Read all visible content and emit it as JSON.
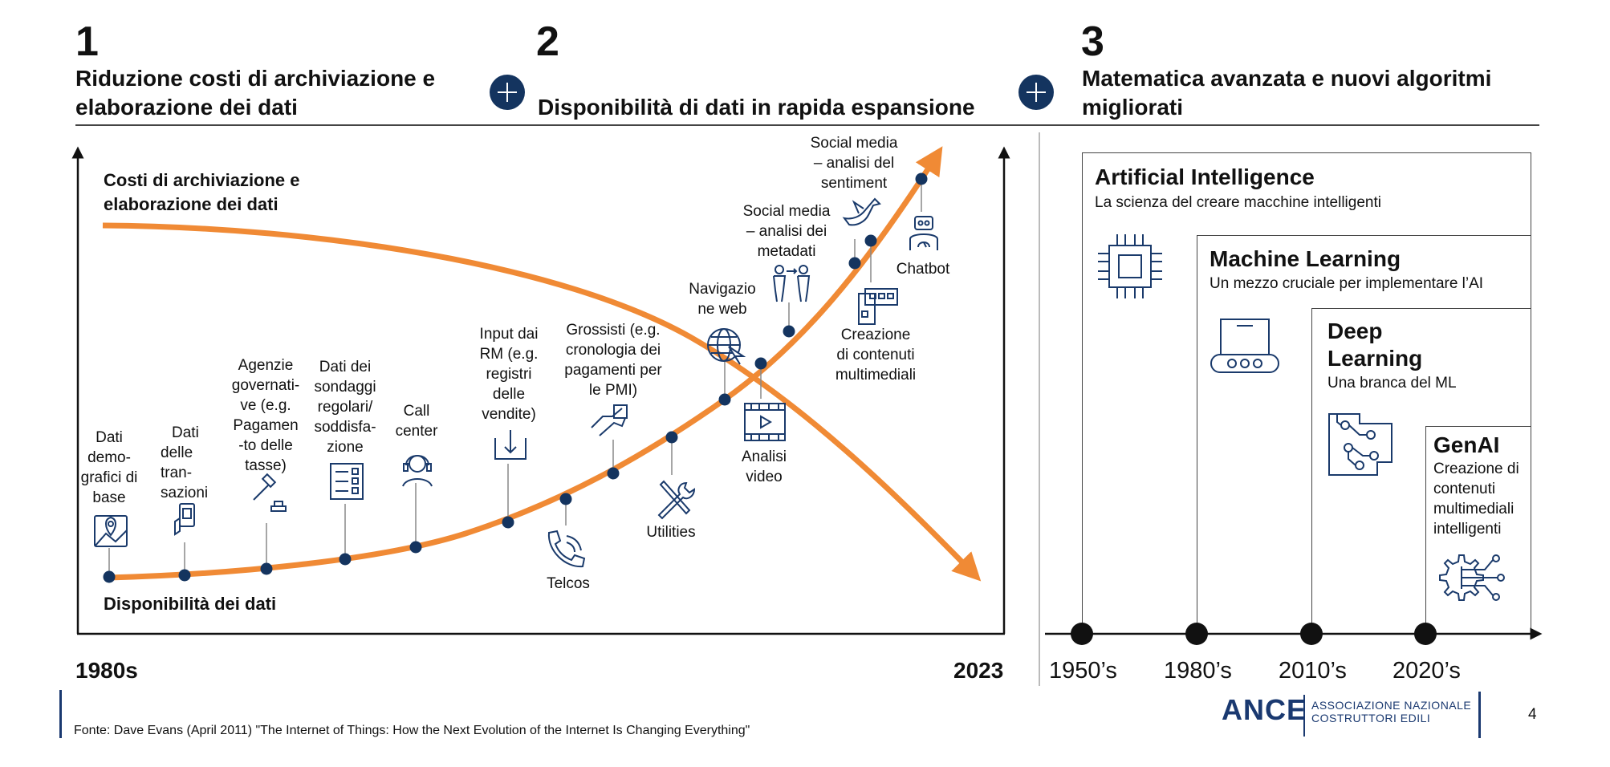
{
  "col1": {
    "number": "1",
    "title_line1": "Riduzione costi di archiviazione e",
    "title_line2": "elaborazione dei dati"
  },
  "col2": {
    "number": "2",
    "title": "Disponibilità di dati in rapida espansione"
  },
  "col3": {
    "number": "3",
    "title_line1": "Matematica avanzata e nuovi algoritmi",
    "title_line2": "migliorati"
  },
  "chart": {
    "cost_label_line1": "Costi di archiviazione e",
    "cost_label_line2": "elaborazione dei dati",
    "availability_label": "Disponibilità dei dati",
    "year_start": "1980s",
    "year_end": "2023",
    "milestones": [
      {
        "lines": [
          "Dati",
          "demo-",
          "grafici di",
          "base"
        ],
        "icon": "map-pin-icon"
      },
      {
        "lines": [
          "Dati",
          "delle",
          "tran-",
          "sazioni"
        ],
        "icon": "payment-icon"
      },
      {
        "lines": [
          "Agenzie",
          "governati-",
          "ve (e.g.",
          "Pagamen",
          "-to delle",
          "tasse)"
        ],
        "icon": "gavel-icon"
      },
      {
        "lines": [
          "Dati  dei",
          "sondaggi",
          "regolari/",
          "soddisfa-",
          "zione"
        ],
        "icon": "survey-icon"
      },
      {
        "lines": [
          "Call",
          "center"
        ],
        "icon": "headset-icon"
      },
      {
        "lines": [
          "Input dai",
          "RM (e.g.",
          "registri",
          "delle",
          "vendite)"
        ],
        "icon": "download-icon"
      },
      {
        "lines": [
          "Telcos"
        ],
        "icon": "phone-icon"
      },
      {
        "lines": [
          "Grossisti (e.g.",
          "cronologia dei",
          "pagamenti per",
          "le PMI)"
        ],
        "icon": "handshake-icon"
      },
      {
        "lines": [
          "Utilities"
        ],
        "icon": "tools-icon"
      },
      {
        "lines": [
          "Navigazio",
          "ne web"
        ],
        "icon": "globe-icon"
      },
      {
        "lines": [
          "Analisi",
          "video"
        ],
        "icon": "video-icon"
      },
      {
        "lines": [
          "Social media",
          "– analisi dei",
          "metadati"
        ],
        "icon": "people-icon"
      },
      {
        "lines": [
          "Creazione",
          "di  contenuti",
          "multimediali"
        ],
        "icon": "media-icon"
      },
      {
        "lines": [
          "Social media",
          "– analisi del",
          "sentiment"
        ],
        "icon": "bird-icon"
      },
      {
        "lines": [
          "Chatbot"
        ],
        "icon": "robot-icon"
      }
    ]
  },
  "ai": {
    "levels": [
      {
        "title": "Artificial Intelligence",
        "subtitle": "La scienza del creare macchine intelligenti",
        "icon": "chip-icon"
      },
      {
        "title": "Machine Learning",
        "subtitle": "Un mezzo cruciale per implementare l’AI",
        "icon": "machine-icon"
      },
      {
        "title_lines": [
          "Deep",
          "Learning"
        ],
        "subtitle": "Una branca del ML",
        "icon": "circuit-icon"
      },
      {
        "title": "GenAI",
        "subtitle_lines": [
          "Creazione di",
          "contenuti",
          "multimediali",
          "intelligenti"
        ],
        "icon": "gear-network-icon"
      }
    ],
    "decades": [
      "1950’s",
      "1980’s",
      "2010’s",
      "2020’s"
    ]
  },
  "footer": {
    "source": "Fonte: Dave Evans (April 2011) \"The Internet of Things: How the Next Evolution of the Internet Is Changing Everything\"",
    "brand": "ANCE",
    "brand_sub_line1": "ASSOCIAZIONE NAZIONALE",
    "brand_sub_line2": "COSTRUTTORI EDILI",
    "page_number": "4"
  },
  "colors": {
    "orange": "#f08a35",
    "navy": "#14345f",
    "dark": "#111111"
  }
}
